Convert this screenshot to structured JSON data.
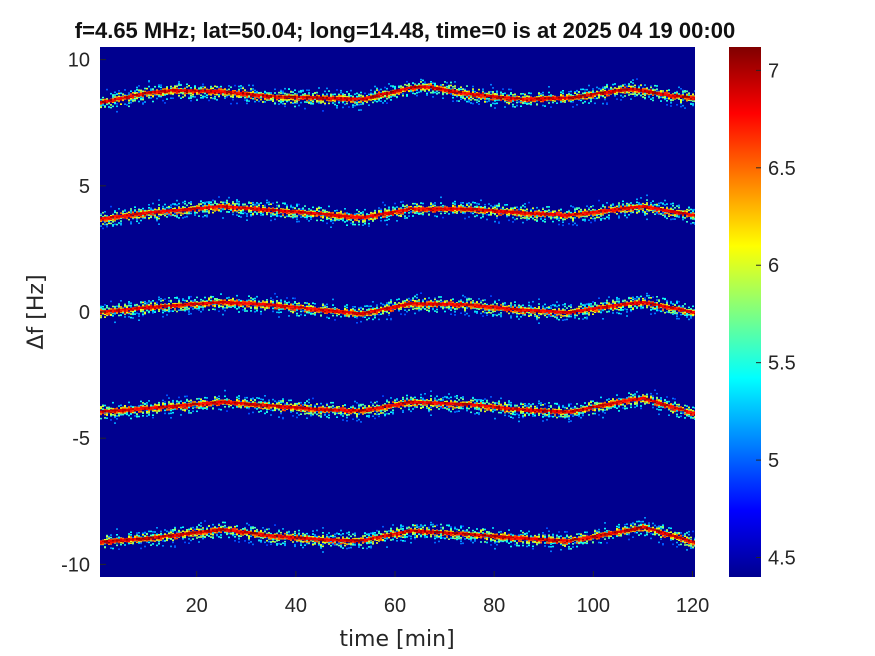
{
  "chart_data": {
    "type": "heatmap",
    "title": "f=4.65 MHz;  lat=50.04; long=14.48, time=0 is at 2025 04 19 00:00",
    "xlabel": "time [min]",
    "ylabel": "Δf [Hz]",
    "xlim": [
      0.5,
      120.5
    ],
    "ylim": [
      -10.5,
      10.5
    ],
    "x_ticks": [
      20,
      40,
      60,
      80,
      100,
      120
    ],
    "x_tick_labels": [
      "20",
      "40",
      "60",
      "80",
      "100",
      "120"
    ],
    "y_ticks": [
      -10,
      -5,
      0,
      5,
      10
    ],
    "y_tick_labels": [
      "-10",
      "-5",
      "0",
      "5",
      "10"
    ],
    "colorbar": {
      "limits": [
        4.4,
        7.12
      ],
      "ticks": [
        4.5,
        5,
        5.5,
        6,
        6.5,
        7
      ],
      "tick_labels": [
        "4.5",
        "5",
        "5.5",
        "6",
        "6.5",
        "7"
      ],
      "colormap": "jet"
    },
    "background_color": "#00008f",
    "series": [
      {
        "name": "",
        "peak": 7.1,
        "x": [
          0,
          10,
          15,
          25,
          35,
          45,
          53,
          63,
          66,
          75,
          85,
          95,
          105,
          108,
          115,
          120
        ],
        "y": [
          8.3,
          8.7,
          8.8,
          8.75,
          8.55,
          8.5,
          8.45,
          8.9,
          8.95,
          8.65,
          8.45,
          8.5,
          8.8,
          8.85,
          8.6,
          8.5
        ]
      },
      {
        "name": "",
        "peak": 7.0,
        "x": [
          0,
          10,
          25,
          35,
          45,
          53,
          63,
          75,
          85,
          95,
          105,
          110,
          120
        ],
        "y": [
          3.7,
          3.95,
          4.2,
          4.05,
          3.9,
          3.75,
          4.1,
          4.1,
          3.95,
          3.85,
          4.1,
          4.2,
          3.85
        ]
      },
      {
        "name": "",
        "peak": 7.0,
        "x": [
          0,
          10,
          25,
          35,
          45,
          53,
          63,
          75,
          85,
          95,
          105,
          110,
          120
        ],
        "y": [
          0.0,
          0.2,
          0.4,
          0.3,
          0.1,
          -0.05,
          0.35,
          0.3,
          0.1,
          0.0,
          0.3,
          0.4,
          0.0
        ]
      },
      {
        "name": "",
        "peak": 7.05,
        "x": [
          0,
          10,
          25,
          35,
          45,
          53,
          63,
          75,
          85,
          95,
          105,
          110,
          120
        ],
        "y": [
          -3.95,
          -3.8,
          -3.55,
          -3.7,
          -3.85,
          -3.9,
          -3.55,
          -3.65,
          -3.85,
          -3.95,
          -3.55,
          -3.4,
          -4.0
        ]
      },
      {
        "name": "",
        "peak": 7.1,
        "x": [
          0,
          10,
          25,
          35,
          45,
          53,
          63,
          75,
          85,
          95,
          105,
          110,
          120
        ],
        "y": [
          -9.1,
          -8.95,
          -8.6,
          -8.85,
          -9.0,
          -9.05,
          -8.65,
          -8.8,
          -8.95,
          -9.05,
          -8.7,
          -8.5,
          -9.1
        ]
      }
    ]
  }
}
